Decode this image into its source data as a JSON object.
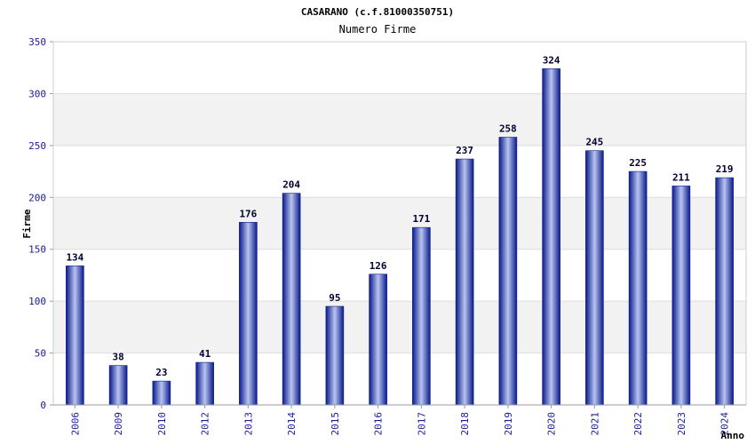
{
  "chart_data": {
    "type": "bar",
    "title": "CASARANO (c.f.81000350751)",
    "subtitle": "Numero Firme",
    "xlabel": "Anno",
    "ylabel": "Firme",
    "categories": [
      "2006",
      "2009",
      "2010",
      "2012",
      "2013",
      "2014",
      "2015",
      "2016",
      "2017",
      "2018",
      "2019",
      "2020",
      "2021",
      "2022",
      "2023",
      "2024"
    ],
    "values": [
      134,
      38,
      23,
      41,
      176,
      204,
      95,
      126,
      171,
      237,
      258,
      324,
      245,
      225,
      211,
      219
    ],
    "ylim": [
      0,
      350
    ],
    "yticks": [
      0,
      50,
      100,
      150,
      200,
      250,
      300,
      350
    ],
    "grid": true,
    "legend": "none",
    "colors": {
      "bar_dark": "#0a1a8a",
      "bar_light": "#b8c4f0",
      "band": "#f2f2f2",
      "tick_text": "#1a1a9a"
    }
  }
}
